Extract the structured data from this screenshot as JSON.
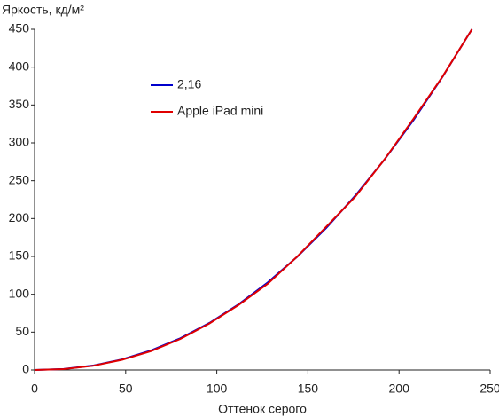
{
  "chart_data": {
    "type": "line",
    "ylabel": "Яркость, кд/м²",
    "xlabel": "Оттенок серого",
    "x": [
      0,
      16,
      32,
      48,
      64,
      80,
      96,
      112,
      128,
      144,
      160,
      176,
      192,
      208,
      224,
      240
    ],
    "series": [
      {
        "name": "2,16",
        "color": "#0000cc",
        "values": [
          0,
          1.3,
          5.8,
          13.9,
          25.9,
          41.9,
          62.2,
          86.8,
          115.7,
          149.3,
          187.4,
          230.3,
          277.9,
          330.3,
          387.7,
          450
        ]
      },
      {
        "name": "Apple iPad mini",
        "color": "#e00000",
        "values": [
          0,
          1.2,
          5.5,
          13.5,
          25,
          41,
          61.5,
          86,
          114,
          149.5,
          189,
          229,
          278,
          332,
          388,
          450
        ]
      }
    ],
    "xlim": [
      0,
      250
    ],
    "xticks": [
      0,
      50,
      100,
      150,
      200,
      250
    ],
    "ylim": [
      0,
      450
    ],
    "yticks": [
      0,
      50,
      100,
      150,
      200,
      250,
      300,
      350,
      400,
      450
    ]
  }
}
